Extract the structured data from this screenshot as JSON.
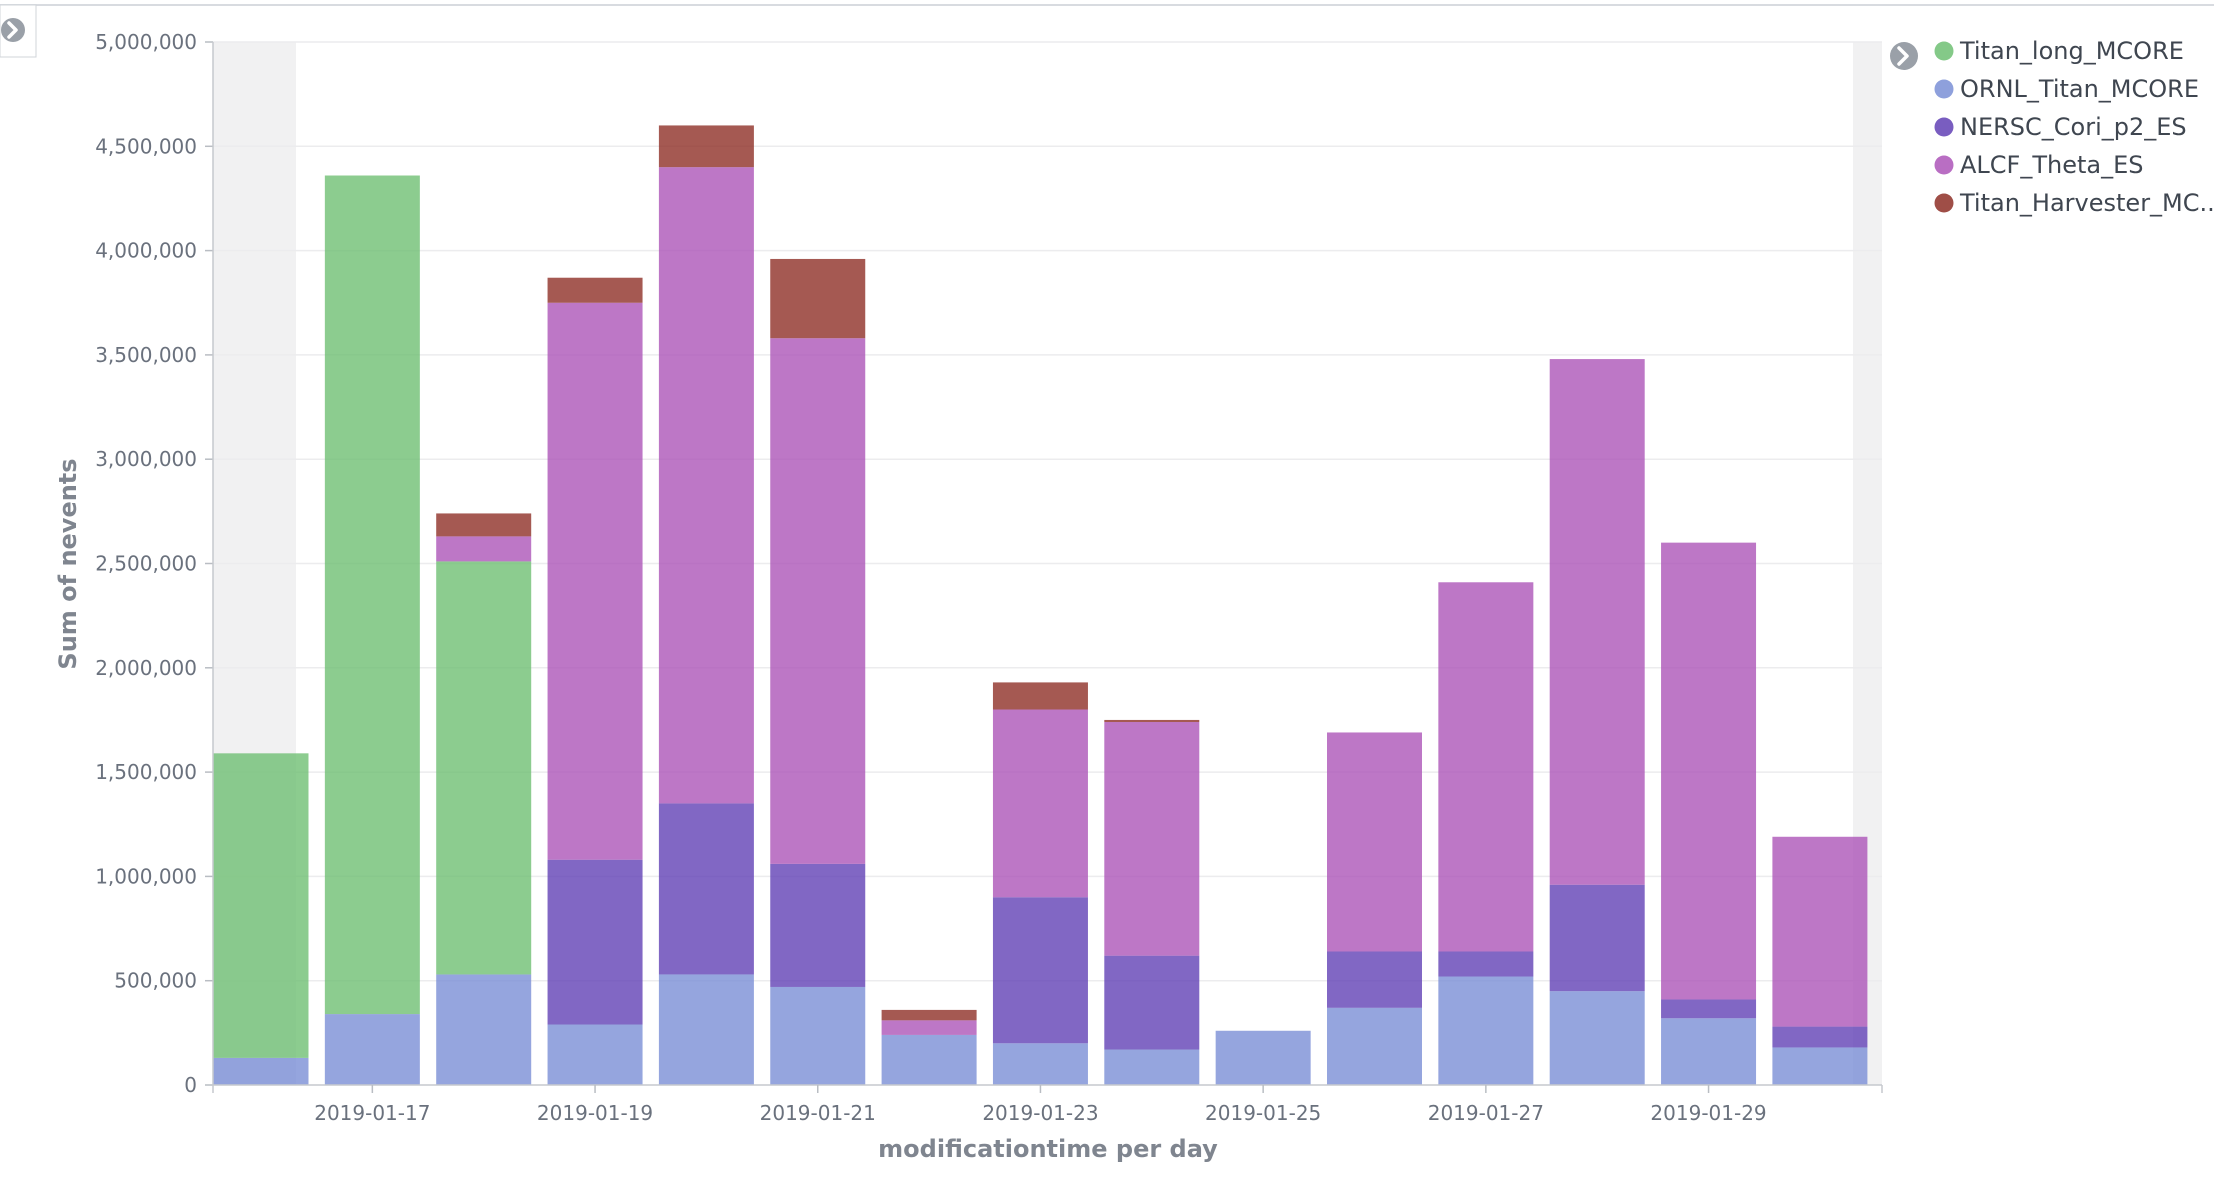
{
  "colors": {
    "Titan_long_MCORE": "#6fbf73",
    "ORNL_Titan_MCORE": "#7a8fd6",
    "NERSC_Cori_p2_ES": "#6241b5",
    "ALCF_Theta_ES": "#ad55b8",
    "Titan_Harvester_MC...": "#8e2f27"
  },
  "legend": {
    "toggle_icon": "chevron-right-icon",
    "items": [
      {
        "label": "Titan_long_MCORE",
        "color": "#6fbf73"
      },
      {
        "label": "ORNL_Titan_MCORE",
        "color": "#7a8fd6"
      },
      {
        "label": "NERSC_Cori_p2_ES",
        "color": "#6241b5"
      },
      {
        "label": "ALCF_Theta_ES",
        "color": "#ad55b8"
      },
      {
        "label": "Titan_Harvester_MC...",
        "color": "#8e2f27"
      }
    ]
  },
  "panel": {
    "toggle_icon": "chevron-right-icon"
  },
  "chart_data": {
    "type": "bar",
    "stacked": true,
    "title": "",
    "xlabel": "modificationtime per day",
    "ylabel": "Sum of nevents",
    "ylim": [
      0,
      5000000
    ],
    "y_ticks": [
      "0",
      "500,000",
      "1,000,000",
      "1,500,000",
      "2,000,000",
      "2,500,000",
      "3,000,000",
      "3,500,000",
      "4,000,000",
      "4,500,000",
      "5,000,000"
    ],
    "x_ticks": [
      "2019-01-17",
      "2019-01-19",
      "2019-01-21",
      "2019-01-23",
      "2019-01-25",
      "2019-01-27",
      "2019-01-29"
    ],
    "categories": [
      "2019-01-16",
      "2019-01-17",
      "2019-01-18",
      "2019-01-19",
      "2019-01-20",
      "2019-01-21",
      "2019-01-22",
      "2019-01-23",
      "2019-01-24",
      "2019-01-25",
      "2019-01-26",
      "2019-01-27",
      "2019-01-28",
      "2019-01-29",
      "2019-01-30"
    ],
    "grid": true,
    "legend_position": "right",
    "series": [
      {
        "name": "ORNL_Titan_MCORE",
        "values": [
          130000,
          340000,
          530000,
          290000,
          530000,
          470000,
          240000,
          200000,
          170000,
          260000,
          370000,
          520000,
          450000,
          320000,
          180000
        ]
      },
      {
        "name": "Titan_long_MCORE",
        "values": [
          1460000,
          4020000,
          1980000,
          0,
          0,
          0,
          0,
          0,
          0,
          0,
          0,
          0,
          0,
          0,
          0
        ]
      },
      {
        "name": "NERSC_Cori_p2_ES",
        "values": [
          0,
          0,
          0,
          790000,
          820000,
          590000,
          0,
          700000,
          450000,
          0,
          270000,
          120000,
          510000,
          90000,
          100000
        ]
      },
      {
        "name": "ALCF_Theta_ES",
        "values": [
          0,
          0,
          120000,
          2670000,
          3050000,
          2520000,
          70000,
          900000,
          1120000,
          0,
          1050000,
          1770000,
          2520000,
          2190000,
          910000
        ]
      },
      {
        "name": "Titan_Harvester_MC...",
        "values": [
          0,
          0,
          110000,
          120000,
          200000,
          380000,
          50000,
          130000,
          10000,
          0,
          0,
          0,
          0,
          0,
          0
        ]
      }
    ]
  }
}
